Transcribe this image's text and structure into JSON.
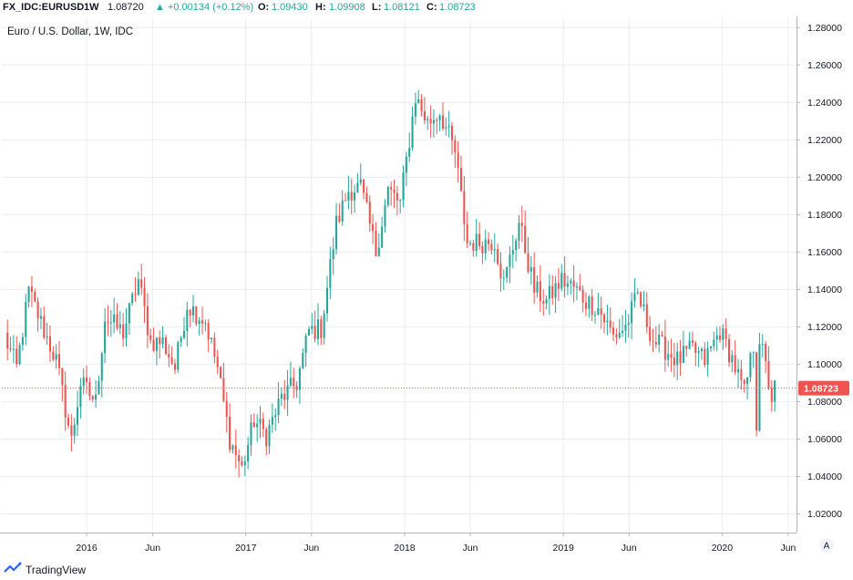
{
  "header": {
    "symbol": "FX_IDC:EURUSD",
    "timeframe": "1W",
    "last": "1.08720",
    "change": "▲ +0.00134 (+0.12%)",
    "o_label": "O:",
    "o_value": "1.09430",
    "h_label": "H:",
    "h_value": "1.09908",
    "l_label": "L:",
    "l_value": "1.08121",
    "c_label": "C:",
    "c_value": "1.08723"
  },
  "footer": {
    "brand": "TradingView"
  },
  "colors": {
    "up": "#26a69a",
    "down": "#ef5350",
    "grid": "#e9edf3",
    "text": "#131722",
    "axis": "#b2b5be"
  },
  "chart_data": {
    "type": "candlestick",
    "title": "Euro / U.S. Dollar, 1W, IDC",
    "last_price_label": "1.08723",
    "y_ticks": [
      "1.28000",
      "1.26000",
      "1.24000",
      "1.22000",
      "1.20000",
      "1.18000",
      "1.16000",
      "1.14000",
      "1.12000",
      "1.10000",
      "1.08000",
      "1.06000",
      "1.04000",
      "1.02000"
    ],
    "ylim": [
      1.01,
      1.285
    ],
    "x_ticks": [
      "2016",
      "Jun",
      "2017",
      "Jun",
      "2018",
      "Jun",
      "2019",
      "Jun",
      "2020",
      "Jun"
    ],
    "x_tick_dates": [
      "2016-01-01",
      "2016-06-01",
      "2017-01-01",
      "2017-06-01",
      "2018-01-01",
      "2018-06-01",
      "2019-01-01",
      "2019-06-01",
      "2020-01-01",
      "2020-06-01"
    ],
    "xlim": [
      "2015-06-20",
      "2020-06-20"
    ],
    "scale_mode": "A",
    "close_path": [
      [
        "2015-06-26",
        1.115
      ],
      [
        "2015-07-24",
        1.098
      ],
      [
        "2015-08-21",
        1.139
      ],
      [
        "2015-09-25",
        1.118
      ],
      [
        "2015-10-23",
        1.102
      ],
      [
        "2015-11-27",
        1.059
      ],
      [
        "2015-12-18",
        1.09
      ],
      [
        "2016-01-22",
        1.08
      ],
      [
        "2016-02-12",
        1.125
      ],
      [
        "2016-03-25",
        1.117
      ],
      [
        "2016-04-29",
        1.145
      ],
      [
        "2016-05-27",
        1.112
      ],
      [
        "2016-06-24",
        1.112
      ],
      [
        "2016-07-22",
        1.098
      ],
      [
        "2016-08-19",
        1.132
      ],
      [
        "2016-09-30",
        1.123
      ],
      [
        "2016-10-28",
        1.098
      ],
      [
        "2016-11-25",
        1.06
      ],
      [
        "2016-12-23",
        1.044
      ],
      [
        "2017-01-20",
        1.07
      ],
      [
        "2017-02-17",
        1.062
      ],
      [
        "2017-03-24",
        1.082
      ],
      [
        "2017-04-28",
        1.09
      ],
      [
        "2017-05-26",
        1.118
      ],
      [
        "2017-06-23",
        1.119
      ],
      [
        "2017-07-28",
        1.175
      ],
      [
        "2017-08-25",
        1.193
      ],
      [
        "2017-09-22",
        1.195
      ],
      [
        "2017-10-27",
        1.16
      ],
      [
        "2017-11-24",
        1.193
      ],
      [
        "2017-12-22",
        1.186
      ],
      [
        "2018-01-26",
        1.243
      ],
      [
        "2018-02-23",
        1.229
      ],
      [
        "2018-03-23",
        1.235
      ],
      [
        "2018-04-27",
        1.213
      ],
      [
        "2018-05-25",
        1.165
      ],
      [
        "2018-06-22",
        1.165
      ],
      [
        "2018-07-27",
        1.166
      ],
      [
        "2018-08-17",
        1.143
      ],
      [
        "2018-09-21",
        1.176
      ],
      [
        "2018-10-26",
        1.14
      ],
      [
        "2018-11-23",
        1.134
      ],
      [
        "2018-12-28",
        1.145
      ],
      [
        "2019-01-25",
        1.141
      ],
      [
        "2019-02-22",
        1.134
      ],
      [
        "2019-03-22",
        1.13
      ],
      [
        "2019-04-26",
        1.115
      ],
      [
        "2019-05-24",
        1.12
      ],
      [
        "2019-06-21",
        1.137
      ],
      [
        "2019-07-26",
        1.113
      ],
      [
        "2019-08-23",
        1.108
      ],
      [
        "2019-09-20",
        1.102
      ],
      [
        "2019-10-25",
        1.108
      ],
      [
        "2019-11-22",
        1.102
      ],
      [
        "2019-12-27",
        1.118
      ],
      [
        "2020-01-24",
        1.103
      ],
      [
        "2020-02-21",
        1.084
      ],
      [
        "2020-03-13",
        1.11
      ],
      [
        "2020-03-20",
        1.069
      ],
      [
        "2020-03-27",
        1.114
      ],
      [
        "2020-04-24",
        1.082
      ],
      [
        "2020-05-01",
        1.087
      ]
    ]
  }
}
